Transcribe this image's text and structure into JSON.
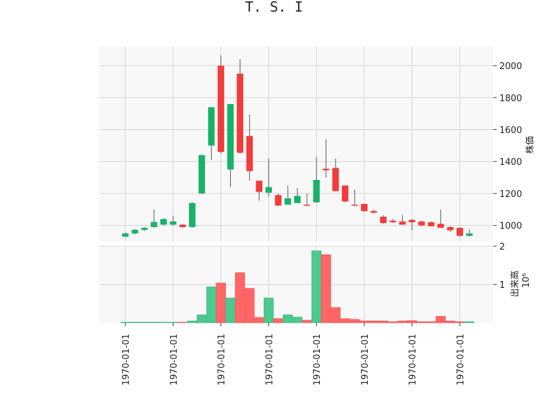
{
  "colors": {
    "up": "#18b26b",
    "down": "#f23b3b",
    "up_volume": "#4cc98f",
    "down_volume": "#ff6666",
    "wick": "#555555",
    "panel_bg": "#f8f8f8",
    "grid": "#d4d4d4"
  },
  "chart_data": {
    "type": "candlestick",
    "title": "T. S. I",
    "x_tick_labels": [
      "1970-01-01",
      "1970-01-01",
      "1970-01-01",
      "1970-01-01",
      "1970-01-01",
      "1970-01-01",
      "1970-01-01",
      "1970-01-01"
    ],
    "x_tick_positions": [
      0,
      5,
      10,
      15,
      20,
      25,
      30,
      35
    ],
    "price_panel": {
      "ylabel": "株価",
      "ylim": [
        900,
        2120
      ],
      "yticks": [
        1000,
        1200,
        1400,
        1600,
        1800,
        2000
      ],
      "grid": true,
      "candles": [
        {
          "open": 930,
          "high": 955,
          "low": 925,
          "close": 950
        },
        {
          "open": 950,
          "high": 978,
          "low": 945,
          "close": 973
        },
        {
          "open": 972,
          "high": 990,
          "low": 965,
          "close": 985
        },
        {
          "open": 990,
          "high": 1100,
          "low": 985,
          "close": 1022
        },
        {
          "open": 1005,
          "high": 1045,
          "low": 1000,
          "close": 1040
        },
        {
          "open": 1005,
          "high": 1060,
          "low": 1000,
          "close": 1025
        },
        {
          "open": 1005,
          "high": 1010,
          "low": 985,
          "close": 990
        },
        {
          "open": 990,
          "high": 1145,
          "low": 985,
          "close": 1140
        },
        {
          "open": 1200,
          "high": 1445,
          "low": 1195,
          "close": 1440
        },
        {
          "open": 1500,
          "high": 1740,
          "low": 1410,
          "close": 1740
        },
        {
          "open": 2000,
          "high": 2065,
          "low": 1450,
          "close": 1460
        },
        {
          "open": 1350,
          "high": 1760,
          "low": 1240,
          "close": 1760
        },
        {
          "open": 1950,
          "high": 2040,
          "low": 1450,
          "close": 1455
        },
        {
          "open": 1560,
          "high": 1695,
          "low": 1280,
          "close": 1340
        },
        {
          "open": 1280,
          "high": 1280,
          "low": 1155,
          "close": 1210
        },
        {
          "open": 1205,
          "high": 1420,
          "low": 1180,
          "close": 1240
        },
        {
          "open": 1190,
          "high": 1200,
          "low": 1120,
          "close": 1125
        },
        {
          "open": 1130,
          "high": 1250,
          "low": 1130,
          "close": 1170
        },
        {
          "open": 1140,
          "high": 1235,
          "low": 1140,
          "close": 1185
        },
        {
          "open": 1130,
          "high": 1200,
          "low": 1120,
          "close": 1125
        },
        {
          "open": 1145,
          "high": 1430,
          "low": 1140,
          "close": 1285
        },
        {
          "open": 1355,
          "high": 1540,
          "low": 1300,
          "close": 1345
        },
        {
          "open": 1360,
          "high": 1420,
          "low": 1215,
          "close": 1215
        },
        {
          "open": 1250,
          "high": 1250,
          "low": 1145,
          "close": 1150
        },
        {
          "open": 1130,
          "high": 1225,
          "low": 1120,
          "close": 1125
        },
        {
          "open": 1135,
          "high": 1135,
          "low": 1085,
          "close": 1090
        },
        {
          "open": 1090,
          "high": 1100,
          "low": 1075,
          "close": 1080
        },
        {
          "open": 1055,
          "high": 1065,
          "low": 1010,
          "close": 1015
        },
        {
          "open": 1030,
          "high": 1040,
          "low": 1015,
          "close": 1020
        },
        {
          "open": 1025,
          "high": 1065,
          "low": 1005,
          "close": 1005
        },
        {
          "open": 1035,
          "high": 1040,
          "low": 970,
          "close": 1020
        },
        {
          "open": 1025,
          "high": 1030,
          "low": 995,
          "close": 1000
        },
        {
          "open": 1020,
          "high": 1025,
          "low": 995,
          "close": 995
        },
        {
          "open": 1010,
          "high": 1100,
          "low": 985,
          "close": 985
        },
        {
          "open": 990,
          "high": 995,
          "low": 960,
          "close": 970
        },
        {
          "open": 985,
          "high": 985,
          "low": 930,
          "close": 935
        },
        {
          "open": 935,
          "high": 975,
          "low": 930,
          "close": 950
        }
      ]
    },
    "volume_panel": {
      "ylabel": "出来高",
      "ylabel_scale": "10⁶",
      "scale": 1000000,
      "ylim": [
        0,
        2
      ],
      "yticks": [
        1,
        2
      ],
      "grid": true,
      "volumes": [
        0.01,
        0.01,
        0.01,
        0.01,
        0.01,
        0.01,
        0.01,
        0.05,
        0.21,
        0.94,
        1.04,
        0.65,
        1.31,
        0.9,
        0.14,
        0.65,
        0.11,
        0.21,
        0.15,
        0.07,
        1.88,
        1.78,
        0.4,
        0.11,
        0.09,
        0.05,
        0.05,
        0.05,
        0.03,
        0.05,
        0.06,
        0.03,
        0.03,
        0.17,
        0.05,
        0.03,
        0.03
      ]
    }
  }
}
